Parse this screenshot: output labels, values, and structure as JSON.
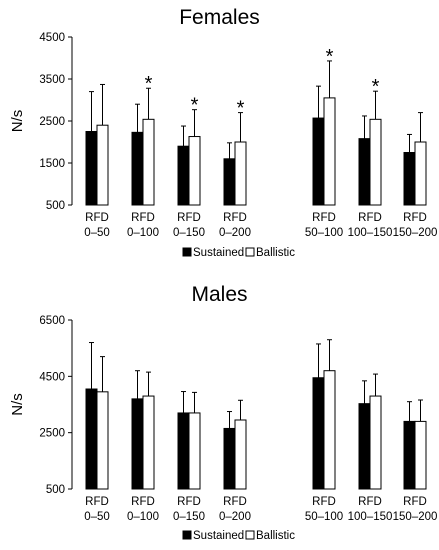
{
  "chart_data": [
    {
      "type": "bar",
      "title": "Females",
      "ylabel": "N/s",
      "xlabel": "",
      "ylim": [
        500,
        4500
      ],
      "yticks": [
        "500",
        "1500",
        "2500",
        "3500",
        "4500"
      ],
      "categories": [
        [
          "RFD",
          "0–50"
        ],
        [
          "RFD",
          "0–100"
        ],
        [
          "RFD",
          "0–150"
        ],
        [
          "RFD",
          "0–200"
        ],
        [
          "RFD",
          "50–100"
        ],
        [
          "RFD",
          "100–150"
        ],
        [
          "RFD",
          "150–200"
        ]
      ],
      "series": [
        {
          "name": "Sustained",
          "color": "#000000",
          "values": [
            2250,
            2230,
            1900,
            1600,
            2570,
            2080,
            1750
          ],
          "errors": [
            950,
            670,
            480,
            380,
            760,
            540,
            430
          ]
        },
        {
          "name": "Ballistic",
          "color": "#ffffff",
          "values": [
            2400,
            2540,
            2130,
            2000,
            3050,
            2540,
            2000
          ],
          "errors": [
            970,
            740,
            640,
            700,
            880,
            670,
            700
          ]
        }
      ],
      "significance": [
        "",
        "*",
        "*",
        "*",
        "*",
        "*",
        ""
      ],
      "legend_position": "bottom-center",
      "grid": false
    },
    {
      "type": "bar",
      "title": "Males",
      "ylabel": "N/s",
      "xlabel": "",
      "ylim": [
        500,
        6500
      ],
      "yticks": [
        "500",
        "2500",
        "4500",
        "6500"
      ],
      "categories": [
        [
          "RFD",
          "0–50"
        ],
        [
          "RFD",
          "0–100"
        ],
        [
          "RFD",
          "0–150"
        ],
        [
          "RFD",
          "0–200"
        ],
        [
          "RFD",
          "50–100"
        ],
        [
          "RFD",
          "100–150"
        ],
        [
          "RFD",
          "150–200"
        ]
      ],
      "series": [
        {
          "name": "Sustained",
          "color": "#000000",
          "values": [
            4050,
            3700,
            3200,
            2650,
            4450,
            3530,
            2900
          ],
          "errors": [
            1650,
            1000,
            760,
            600,
            1200,
            810,
            700
          ]
        },
        {
          "name": "Ballistic",
          "color": "#ffffff",
          "values": [
            3950,
            3800,
            3200,
            2950,
            4700,
            3800,
            2900
          ],
          "errors": [
            1250,
            850,
            730,
            700,
            1100,
            780,
            760
          ]
        }
      ],
      "significance": [
        "",
        "",
        "",
        "",
        "",
        "",
        ""
      ],
      "legend_position": "bottom-center",
      "grid": false
    }
  ]
}
